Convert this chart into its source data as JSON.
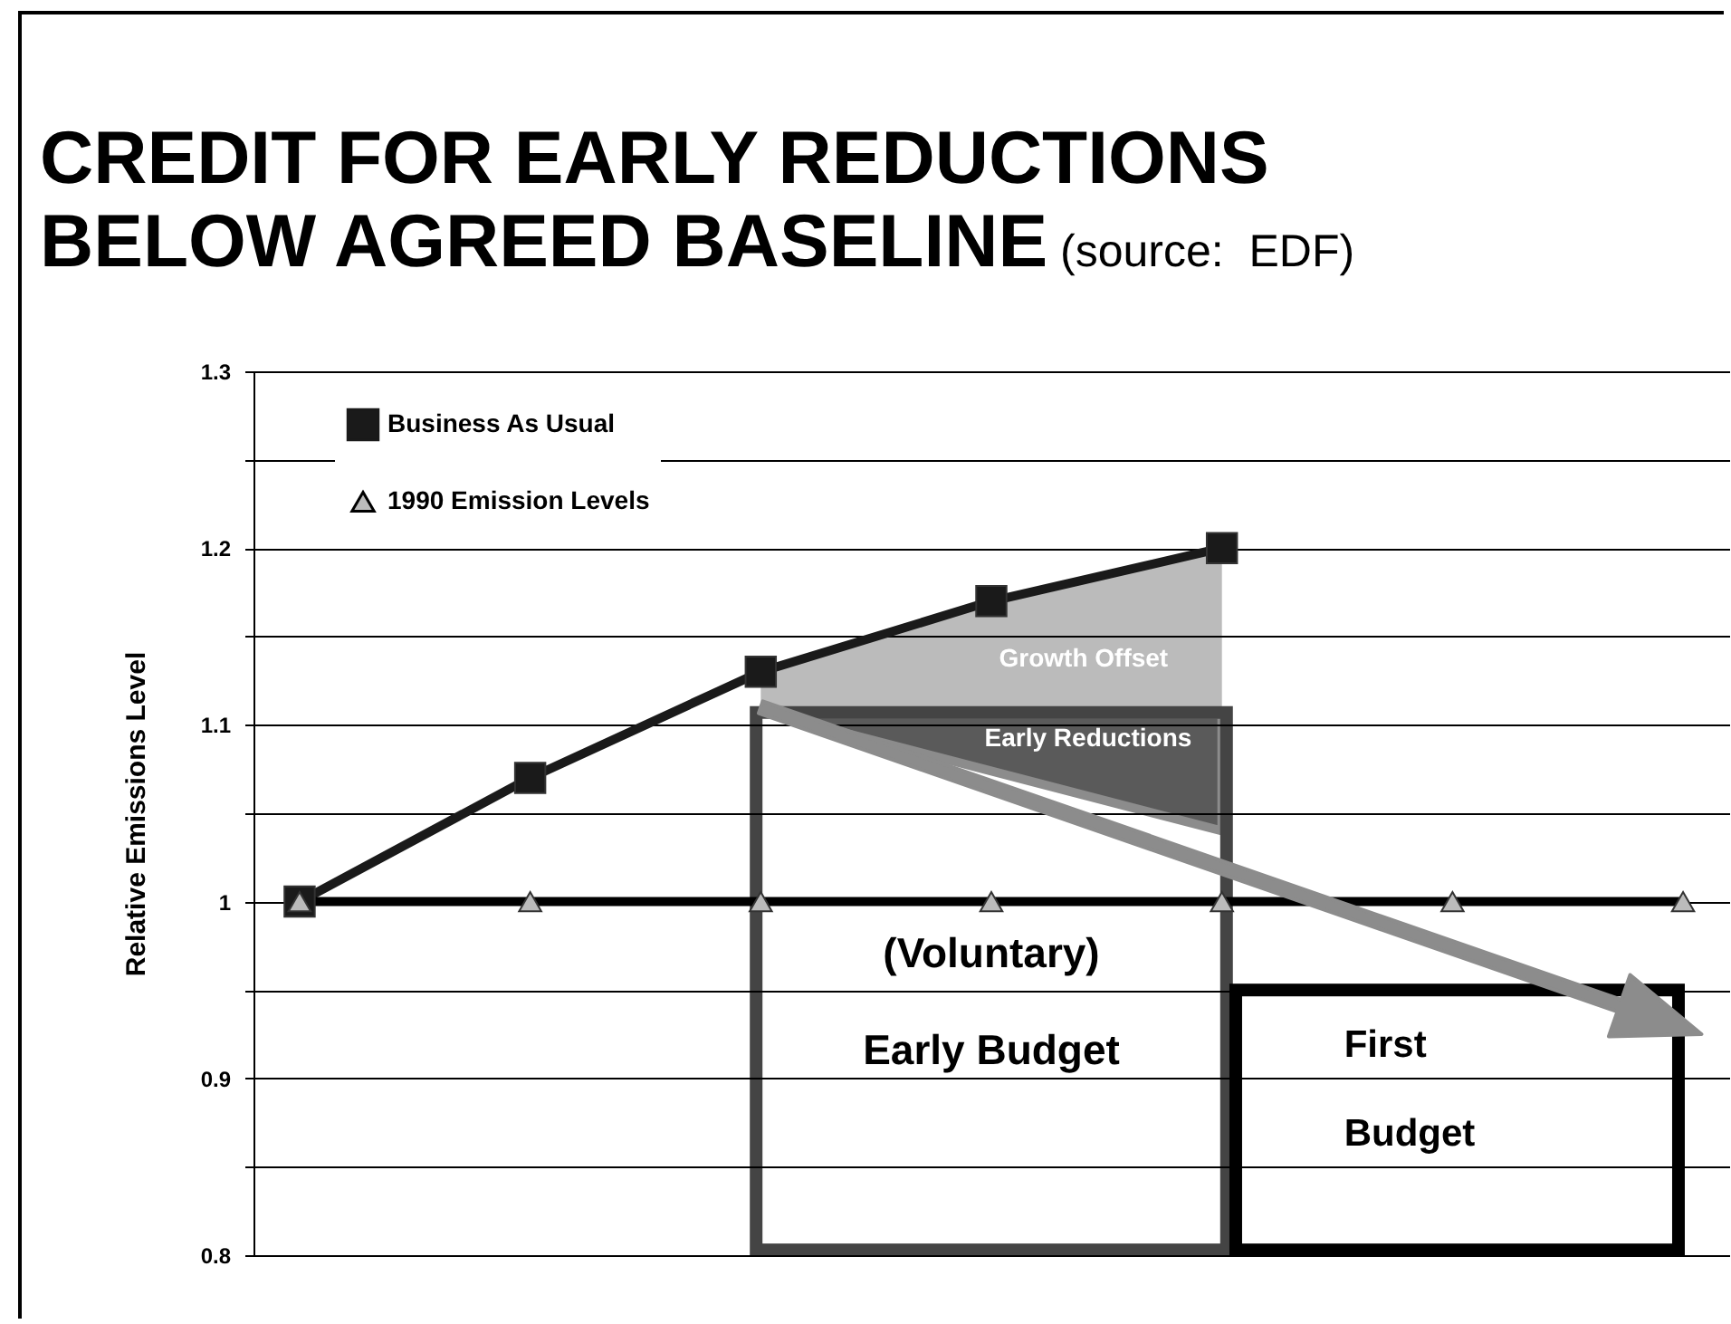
{
  "chart_data": {
    "type": "line",
    "title": "CREDIT FOR EARLY REDUCTIONS BELOW AGREED BASELINE",
    "ylabel": "Relative Emissions Level",
    "annotations": [
      "(source:  EDF)",
      "Growth Offset",
      "Early Reductions",
      "(Voluntary) Early Budget",
      "First Budget"
    ],
    "categories": [
      null,
      null,
      null,
      null,
      null,
      null,
      null
    ],
    "series": [
      {
        "name": "Business As Usual",
        "color": "#1a1a1a",
        "marker": "square",
        "values": [
          1,
          1.07,
          1.13,
          1.17,
          1.2,
          null,
          null
        ]
      },
      {
        "name": "1990 Emission Levels",
        "color": "#000000",
        "marker": "triangle",
        "values": [
          1,
          1,
          1,
          1,
          1,
          1,
          1
        ]
      }
    ],
    "ylim": [
      0.8,
      1.3
    ],
    "yticks": [
      0.8,
      {
        "value": 0.85,
        "label": null
      },
      0.9,
      {
        "value": 0.95,
        "label": null
      },
      1,
      {
        "value": 1.05,
        "label": null
      },
      1.1,
      {
        "value": 1.15,
        "label": null
      },
      1.2,
      {
        "value": 1.25,
        "label": null
      },
      1.3
    ],
    "grid": true,
    "legend": "top left",
    "tick_labels": "y"
  }
}
